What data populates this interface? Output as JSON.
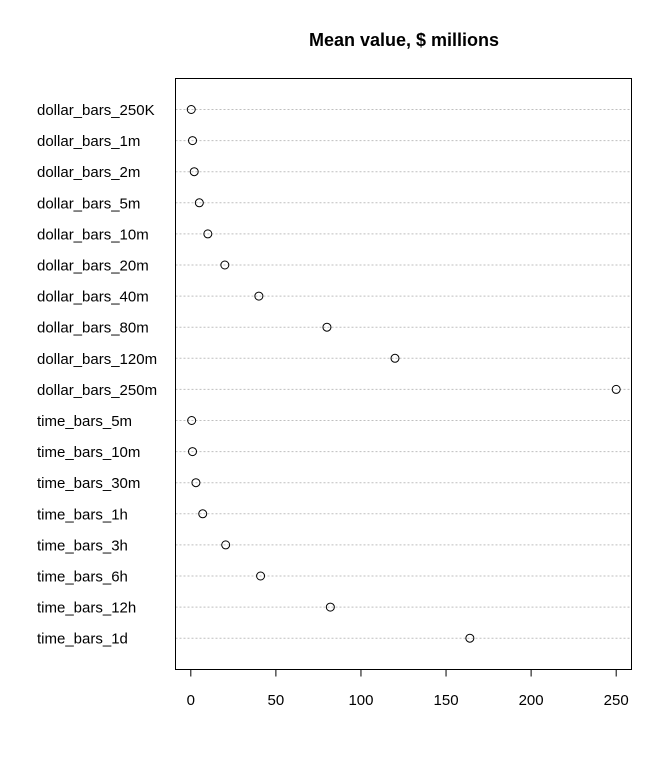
{
  "chart_data": {
    "type": "scatter",
    "title": "Mean value, $ millions",
    "xlabel": "",
    "ylabel": "",
    "grid": true,
    "legend": "none",
    "xlim": [
      -9,
      259
    ],
    "xticks": [
      0,
      50,
      100,
      150,
      200,
      250
    ],
    "categories": [
      "dollar_bars_250K",
      "dollar_bars_1m",
      "dollar_bars_2m",
      "dollar_bars_5m",
      "dollar_bars_10m",
      "dollar_bars_20m",
      "dollar_bars_40m",
      "dollar_bars_80m",
      "dollar_bars_120m",
      "dollar_bars_250m",
      "time_bars_5m",
      "time_bars_10m",
      "time_bars_30m",
      "time_bars_1h",
      "time_bars_3h",
      "time_bars_6h",
      "time_bars_12h",
      "time_bars_1d"
    ],
    "values": [
      0.25,
      1,
      2,
      5,
      10,
      20,
      40,
      80,
      120,
      250,
      0.5,
      1,
      3,
      7,
      20.5,
      41,
      82,
      164
    ],
    "colors": {
      "axis": "#000000",
      "grid": "#bfbfbf",
      "marker": "#000000"
    }
  }
}
